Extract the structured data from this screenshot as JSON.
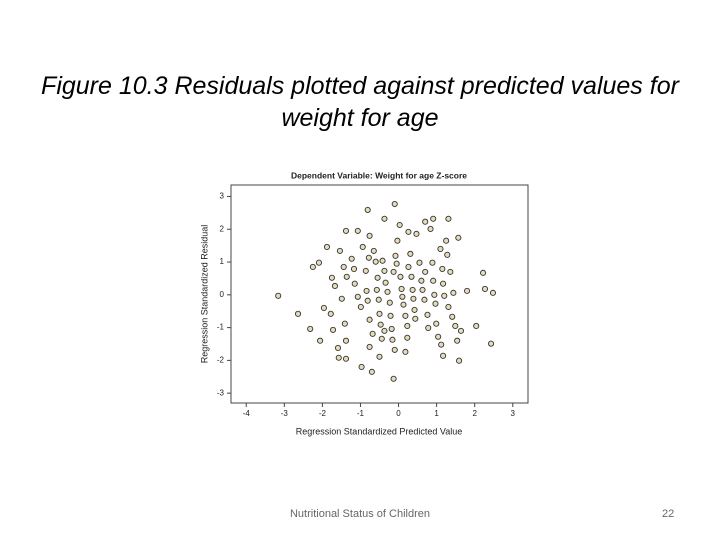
{
  "slide": {
    "title": "Figure 10.3 Residuals plotted against predicted values for weight for age",
    "footer": "Nutritional Status of Children",
    "page_number": "22"
  },
  "chart_data": {
    "type": "scatter",
    "title": "Dependent Variable: Weight for age Z-score",
    "x_label": "Regression Standardized Predicted Value",
    "y_label": "Regression Standardized Residual",
    "color": "#e6dcb8",
    "edge_color": "#333333",
    "grid": false,
    "xlim": [
      -4.4,
      3.4
    ],
    "xticks": [
      -4,
      -3,
      -2,
      -1,
      0,
      1,
      2,
      3
    ],
    "ylim": [
      -3.3,
      3.35
    ],
    "yticks": [
      -3,
      -2,
      -1,
      0,
      1,
      2,
      3
    ],
    "x": [
      -3.16,
      -2.64,
      -2.32,
      -2.09,
      -2.25,
      -1.88,
      -1.75,
      -1.67,
      -1.72,
      -1.78,
      -1.54,
      -1.49,
      -1.44,
      -1.36,
      -1.41,
      -1.38,
      -1.57,
      -1.38,
      -1.23,
      -1.17,
      -1.15,
      -1.07,
      -0.99,
      -0.94,
      -0.86,
      -0.84,
      -0.81,
      -0.76,
      -0.78,
      -0.76,
      -0.65,
      -0.6,
      -0.55,
      -0.57,
      -0.52,
      -0.5,
      -0.47,
      -0.44,
      -0.7,
      -0.5,
      -0.42,
      -0.37,
      -0.34,
      -0.29,
      -0.23,
      -0.21,
      -0.18,
      -0.16,
      -0.1,
      -0.13,
      -0.08,
      -0.05,
      -0.03,
      -0.1,
      0.03,
      0.05,
      0.08,
      0.1,
      0.13,
      0.18,
      0.23,
      0.23,
      0.18,
      -0.13,
      0.26,
      0.31,
      0.34,
      0.37,
      0.39,
      0.42,
      0.44,
      0.47,
      0.55,
      0.6,
      0.63,
      0.68,
      0.7,
      0.76,
      0.78,
      0.84,
      0.89,
      0.91,
      0.94,
      0.97,
      0.99,
      1.04,
      1.1,
      1.15,
      1.17,
      1.2,
      1.28,
      1.25,
      1.31,
      0.91,
      0.7,
      1.12,
      1.17,
      1.31,
      1.41,
      1.49,
      1.54,
      1.59,
      1.64,
      1.8,
      2.04,
      2.22,
      2.27,
      2.43,
      2.48,
      1.57,
      1.36,
      1.44,
      -0.97,
      -1.59,
      -1.38,
      -1.07,
      -0.81,
      -0.37,
      0.26,
      -0.76,
      -0.68,
      -0.37,
      -2.06,
      -1.96
    ],
    "values": [
      -0.03,
      -0.58,
      -1.04,
      0.98,
      0.85,
      1.46,
      0.52,
      0.27,
      -1.07,
      -0.58,
      1.34,
      -0.12,
      0.85,
      0.55,
      -0.88,
      -1.4,
      -1.92,
      -1.95,
      1.1,
      0.79,
      0.34,
      -0.06,
      -0.37,
      1.46,
      0.73,
      0.12,
      -0.18,
      -0.76,
      1.13,
      1.8,
      1.34,
      1.01,
      0.52,
      0.15,
      -0.15,
      -0.58,
      -0.91,
      -1.34,
      -2.35,
      -1.89,
      1.04,
      0.73,
      0.37,
      0.09,
      -0.24,
      -0.64,
      -1.04,
      -1.37,
      -1.68,
      0.7,
      1.19,
      0.95,
      1.65,
      2.77,
      2.13,
      0.55,
      0.18,
      -0.06,
      -0.3,
      -0.64,
      -0.95,
      -1.31,
      -1.74,
      -2.56,
      0.85,
      1.25,
      0.55,
      0.15,
      -0.12,
      -0.46,
      -0.73,
      1.86,
      0.98,
      0.43,
      0.15,
      -0.15,
      0.7,
      -0.61,
      -1.01,
      2.01,
      0.98,
      0.43,
      0.0,
      -0.27,
      -0.88,
      -1.28,
      1.4,
      0.79,
      0.34,
      -0.03,
      1.22,
      1.65,
      2.32,
      2.32,
      2.23,
      -1.52,
      -1.86,
      -0.37,
      -0.67,
      -0.95,
      -1.4,
      -2.01,
      -1.1,
      0.12,
      -0.95,
      0.67,
      0.18,
      -1.49,
      0.06,
      1.74,
      0.7,
      0.06,
      -2.2,
      -1.62,
      1.95,
      1.95,
      2.59,
      2.32,
      1.92,
      -1.59,
      -1.19,
      -1.1,
      -1.4,
      -0.4
    ]
  }
}
